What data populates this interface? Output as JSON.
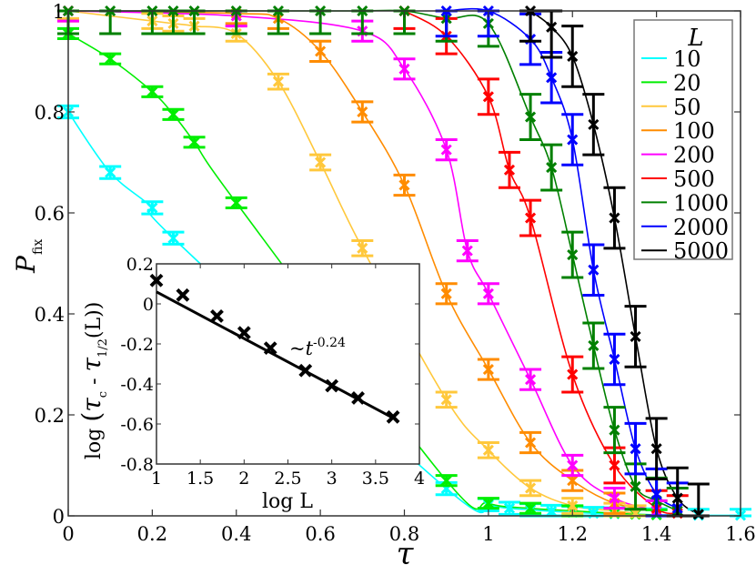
{
  "chart_data": [
    {
      "type": "line",
      "xlabel": "τ",
      "ylabel": "P",
      "ylabel_sub": "fix",
      "xlim": [
        0,
        1.6
      ],
      "ylim": [
        0,
        1
      ],
      "xticks": [
        "0",
        "0.2",
        "0.4",
        "0.6",
        "0.8",
        "1",
        "1.2",
        "1.4",
        "1.6"
      ],
      "yticks": [
        "0",
        "0.2",
        "0.4",
        "0.6",
        "0.8",
        "1"
      ],
      "grid": false,
      "legend": {
        "title": "L",
        "placement": "top-right"
      },
      "series": [
        {
          "name": "10",
          "color": "#00ffff",
          "err": 0.012,
          "points": [
            [
              0,
              0.8
            ],
            [
              0.1,
              0.68
            ],
            [
              0.2,
              0.61
            ],
            [
              0.25,
              0.55
            ],
            [
              0.9,
              0.054
            ],
            [
              1.0,
              0.022
            ],
            [
              1.05,
              0.015
            ],
            [
              1.1,
              0.012
            ],
            [
              1.15,
              0.009
            ],
            [
              1.2,
              0.007
            ],
            [
              1.25,
              0.005
            ],
            [
              1.3,
              0.004
            ],
            [
              1.4,
              0.002
            ],
            [
              1.5,
              0.001
            ],
            [
              1.6,
              0.001
            ]
          ]
        },
        {
          "name": "20",
          "color": "#00ee00",
          "err": 0.01,
          "points": [
            [
              0,
              0.955
            ],
            [
              0.1,
              0.905
            ],
            [
              0.2,
              0.84
            ],
            [
              0.25,
              0.795
            ],
            [
              0.3,
              0.74
            ],
            [
              0.4,
              0.62
            ],
            [
              0.9,
              0.07
            ],
            [
              1.0,
              0.025
            ],
            [
              1.1,
              0.015
            ],
            [
              1.2,
              0.01
            ],
            [
              1.3,
              0.005
            ],
            [
              1.35,
              0.003
            ],
            [
              1.4,
              0.002
            ]
          ]
        },
        {
          "name": "50",
          "color": "#ffc83c",
          "err": 0.015,
          "points": [
            [
              0,
              1.0
            ],
            [
              0.2,
              0.98
            ],
            [
              0.25,
              0.975
            ],
            [
              0.3,
              0.97
            ],
            [
              0.4,
              0.955
            ],
            [
              0.5,
              0.86
            ],
            [
              0.6,
              0.7
            ],
            [
              0.7,
              0.53
            ],
            [
              0.9,
              0.23
            ],
            [
              1.0,
              0.13
            ],
            [
              1.1,
              0.055
            ],
            [
              1.2,
              0.02
            ],
            [
              1.3,
              0.01
            ],
            [
              1.35,
              0.005
            ]
          ]
        },
        {
          "name": "100",
          "color": "#ff8c00",
          "err": 0.02,
          "points": [
            [
              0,
              1.0
            ],
            [
              0.4,
              0.995
            ],
            [
              0.5,
              0.985
            ],
            [
              0.6,
              0.92
            ],
            [
              0.7,
              0.8
            ],
            [
              0.8,
              0.655
            ],
            [
              0.9,
              0.44
            ],
            [
              1.0,
              0.29
            ],
            [
              1.1,
              0.145
            ],
            [
              1.2,
              0.07
            ],
            [
              1.3,
              0.025
            ],
            [
              1.4,
              0.01
            ]
          ]
        },
        {
          "name": "200",
          "color": "#ff00ff",
          "err": 0.02,
          "points": [
            [
              0,
              1.0
            ],
            [
              0.4,
              0.99
            ],
            [
              0.7,
              0.96
            ],
            [
              0.8,
              0.885
            ],
            [
              0.9,
              0.725
            ],
            [
              0.95,
              0.525
            ],
            [
              1.0,
              0.44
            ],
            [
              1.1,
              0.27
            ],
            [
              1.2,
              0.1
            ],
            [
              1.3,
              0.035
            ],
            [
              1.4,
              0.01
            ]
          ]
        },
        {
          "name": "500",
          "color": "#ff0000",
          "err": 0.035,
          "points": [
            [
              0.8,
              1.0
            ],
            [
              0.9,
              0.95
            ],
            [
              1.0,
              0.83
            ],
            [
              1.05,
              0.685
            ],
            [
              1.1,
              0.59
            ],
            [
              1.2,
              0.28
            ],
            [
              1.3,
              0.1
            ],
            [
              1.4,
              0.015
            ],
            [
              1.45,
              0.005
            ]
          ]
        },
        {
          "name": "1000",
          "color": "#008000",
          "err": 0.045,
          "points": [
            [
              0,
              1
            ],
            [
              0.1,
              1
            ],
            [
              0.2,
              1
            ],
            [
              0.25,
              1
            ],
            [
              0.3,
              1
            ],
            [
              0.4,
              1
            ],
            [
              0.5,
              1
            ],
            [
              0.6,
              1
            ],
            [
              0.7,
              1
            ],
            [
              0.8,
              1
            ],
            [
              0.9,
              0.985
            ],
            [
              1.0,
              0.975
            ],
            [
              1.1,
              0.79
            ],
            [
              1.15,
              0.69
            ],
            [
              1.2,
              0.517
            ],
            [
              1.25,
              0.337
            ],
            [
              1.3,
              0.17
            ],
            [
              1.35,
              0.058
            ],
            [
              1.4,
              0.03
            ],
            [
              1.45,
              0.01
            ]
          ]
        },
        {
          "name": "2000",
          "color": "#0000ff",
          "err": 0.05,
          "points": [
            [
              0.9,
              1.0
            ],
            [
              1.0,
              1.0
            ],
            [
              1.1,
              0.944
            ],
            [
              1.15,
              0.868
            ],
            [
              1.2,
              0.745
            ],
            [
              1.25,
              0.487
            ],
            [
              1.3,
              0.31
            ],
            [
              1.35,
              0.133
            ],
            [
              1.4,
              0.043
            ],
            [
              1.45,
              0.015
            ]
          ]
        },
        {
          "name": "5000",
          "color": "#000000",
          "err": 0.06,
          "points": [
            [
              1.1,
              1.0
            ],
            [
              1.15,
              0.968
            ],
            [
              1.2,
              0.91
            ],
            [
              1.25,
              0.775
            ],
            [
              1.3,
              0.59
            ],
            [
              1.35,
              0.355
            ],
            [
              1.4,
              0.133
            ],
            [
              1.45,
              0.035
            ],
            [
              1.5,
              0.003
            ]
          ]
        }
      ]
    },
    {
      "type": "scatter",
      "xlabel": "log L",
      "ylabel": "log (τ_c - τ_1/2(L))",
      "ylabel_parts": {
        "log": "log",
        "open": "(",
        "tau": "τ",
        "c": "c",
        "minus": " - ",
        "half": "1/2",
        "L": "(L))"
      },
      "xlim": [
        1,
        4
      ],
      "ylim": [
        -0.8,
        0.2
      ],
      "xticks": [
        "1",
        "1.5",
        "2",
        "2.5",
        "3",
        "3.5",
        "4"
      ],
      "yticks": [
        "-0.8",
        "-0.6",
        "-0.4",
        "-0.2",
        "0",
        "0.2"
      ],
      "points": [
        [
          1.0,
          0.117
        ],
        [
          1.3,
          0.044
        ],
        [
          1.69,
          -0.061
        ],
        [
          2.0,
          -0.144
        ],
        [
          2.3,
          -0.221
        ],
        [
          2.7,
          -0.333
        ],
        [
          3.0,
          -0.409
        ],
        [
          3.3,
          -0.47
        ],
        [
          3.7,
          -0.565
        ]
      ],
      "fit": {
        "x": [
          1.0,
          3.7
        ],
        "y": [
          0.06,
          -0.57
        ]
      },
      "annotation": {
        "prefix": "~t",
        "exponent": "-0.24"
      },
      "color": "#000000"
    }
  ]
}
